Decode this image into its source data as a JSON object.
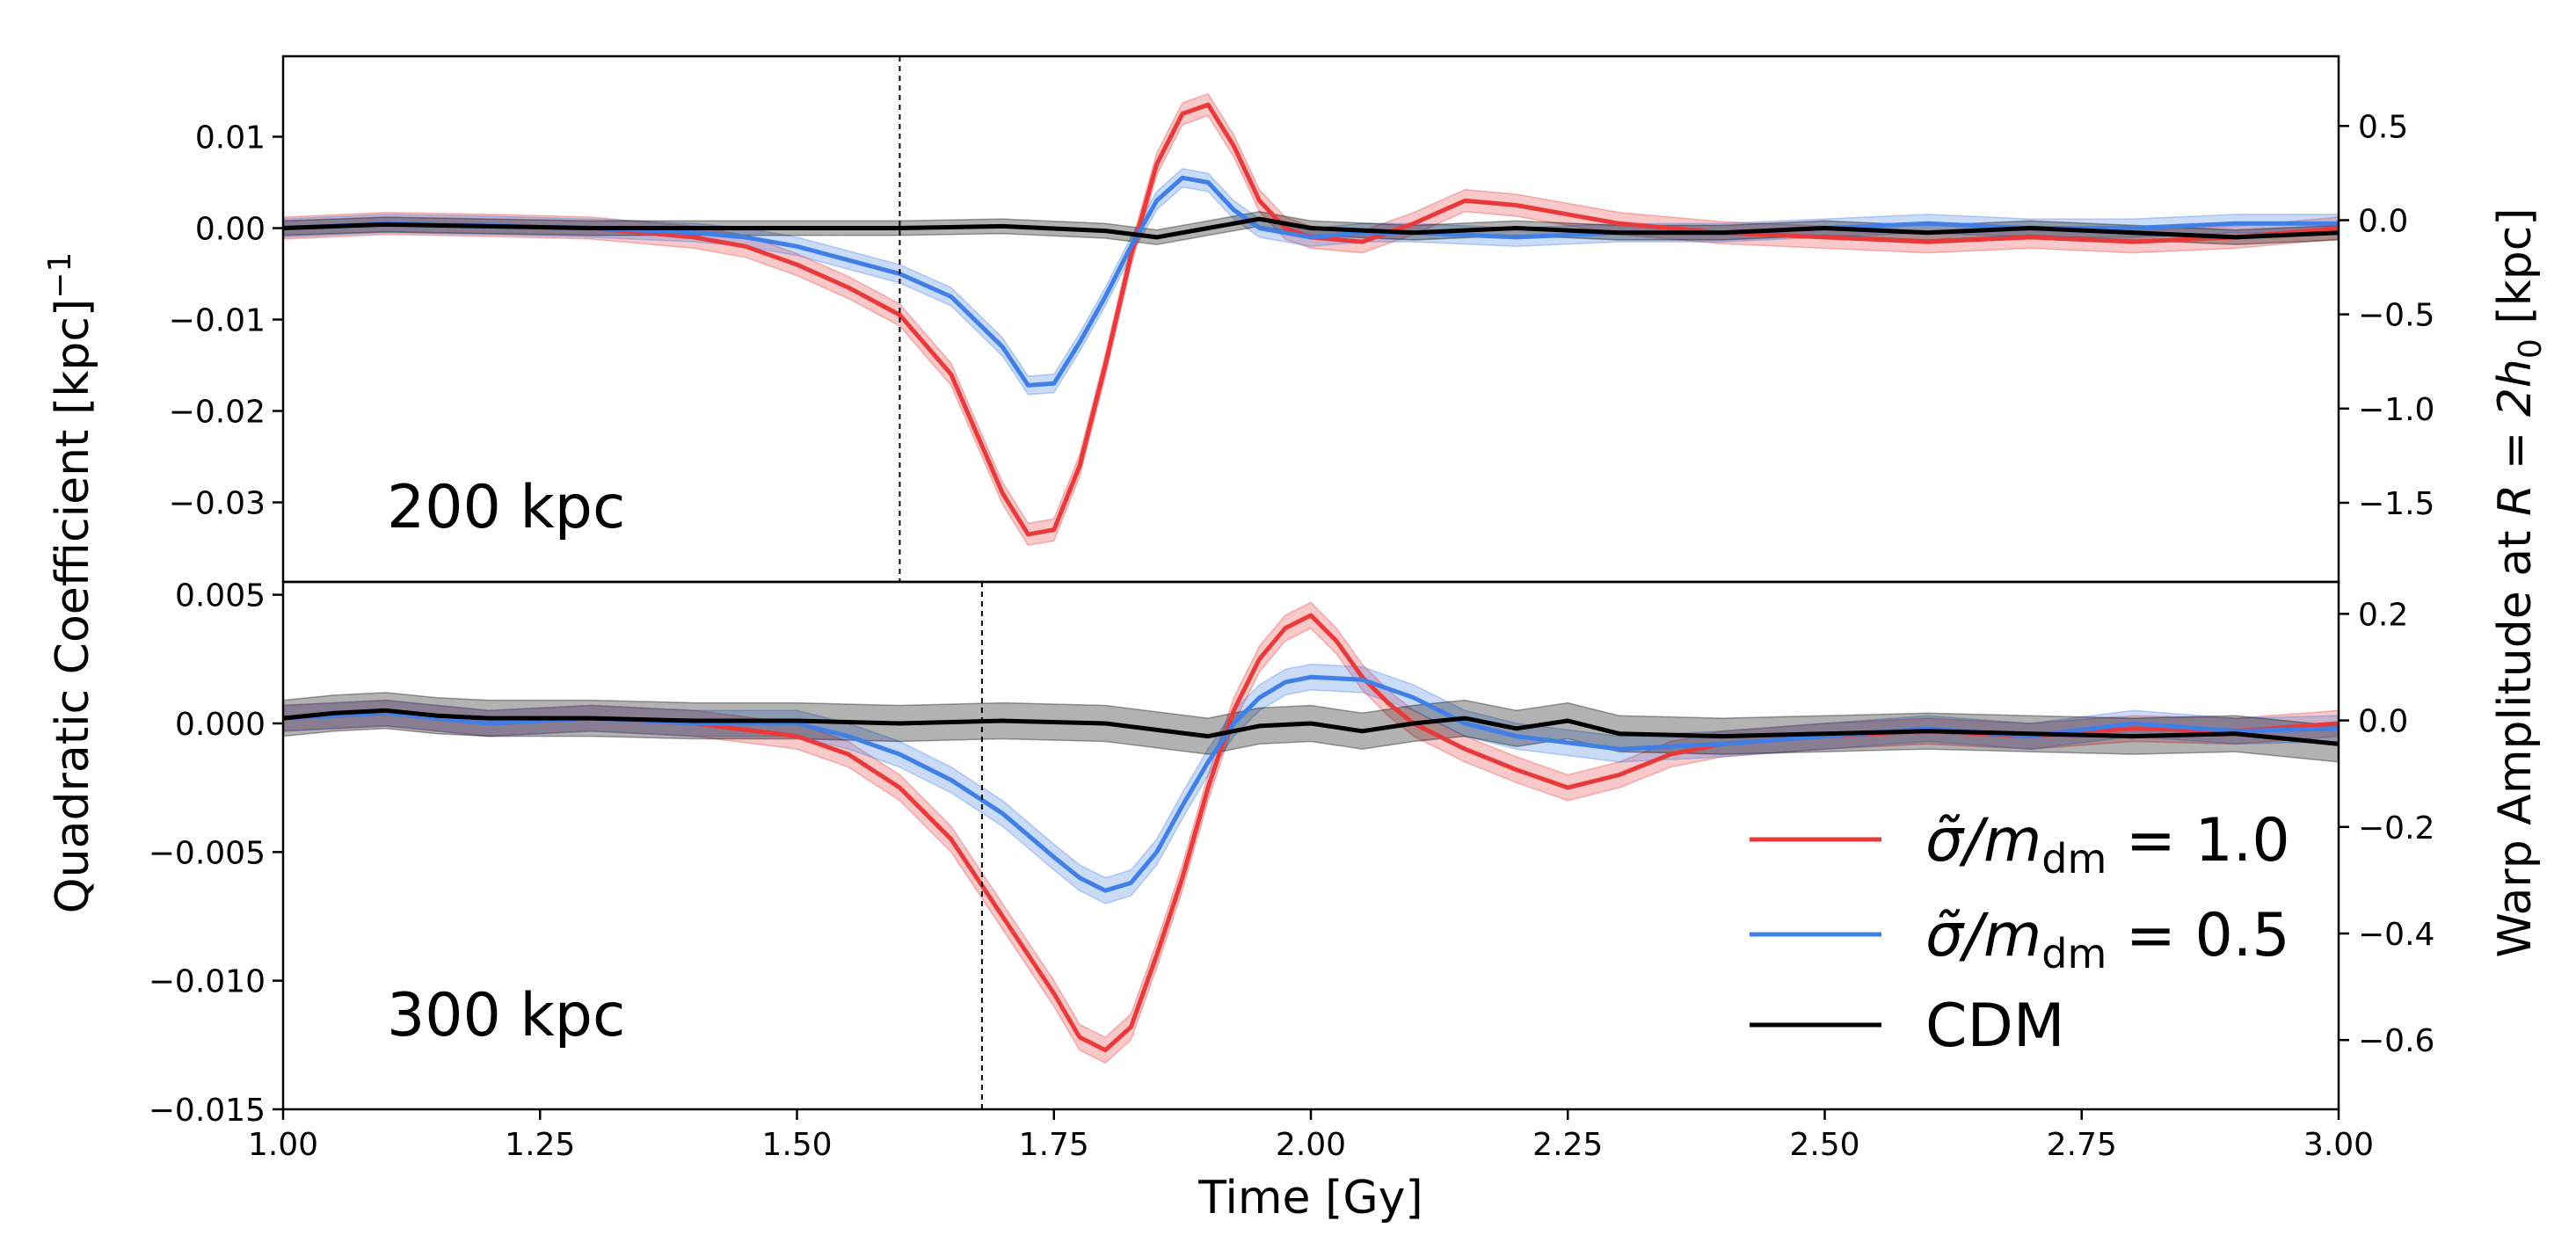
{
  "figure": {
    "xlabel": "Time [Gy]",
    "ylabel_left": "Quadratic Coefficient [kpc]",
    "ylabel_left_sup": "−1",
    "ylabel_right_prefix": "Warp Amplitude at ",
    "ylabel_right_math": "R = 2h",
    "ylabel_right_sub": "0",
    "ylabel_right_unit": " [kpc]",
    "xlim": [
      1.0,
      3.0
    ],
    "xticks": [
      "1.00",
      "1.25",
      "1.50",
      "1.75",
      "2.00",
      "2.25",
      "2.50",
      "2.75",
      "3.00"
    ]
  },
  "colors": {
    "sigma_1": "#e8393b",
    "sigma_05": "#3f7fe6",
    "cdm": "#000000"
  },
  "legend": {
    "items": [
      {
        "name": "σ̃/m_dm = 1.0",
        "prefix": "σ̃/m",
        "sub": "dm",
        "suffix": " = 1.0",
        "color_key": "sigma_1"
      },
      {
        "name": "σ̃/m_dm = 0.5",
        "prefix": "σ̃/m",
        "sub": "dm",
        "suffix": " = 0.5",
        "color_key": "sigma_05"
      },
      {
        "name": "CDM",
        "prefix": "CDM",
        "sub": "",
        "suffix": "",
        "color_key": "cdm"
      }
    ]
  },
  "chart_data": [
    {
      "type": "line",
      "panel_label": "200 kpc",
      "ylim": [
        -0.0387,
        0.0188
      ],
      "yticks_left": [
        "0.01",
        "0.00",
        "−0.01",
        "−0.02",
        "−0.03"
      ],
      "ytick_values_left": [
        0.01,
        0.0,
        -0.01,
        -0.02,
        -0.03
      ],
      "ylim_right": [
        -1.92,
        0.87
      ],
      "yticks_right": [
        "0.5",
        "0.0",
        "−0.5",
        "−1.0",
        "−1.5"
      ],
      "ytick_values_right": [
        0.5,
        0.0,
        -0.5,
        -1.0,
        -1.5
      ],
      "vline_x": 1.6,
      "series": [
        {
          "name": "σ̃/m_dm = 1.0",
          "color_key": "sigma_1",
          "x": [
            1.0,
            1.1,
            1.2,
            1.3,
            1.4,
            1.45,
            1.5,
            1.55,
            1.6,
            1.65,
            1.7,
            1.725,
            1.75,
            1.775,
            1.8,
            1.825,
            1.85,
            1.875,
            1.9,
            1.925,
            1.95,
            1.975,
            2.0,
            2.05,
            2.1,
            2.15,
            2.2,
            2.25,
            2.3,
            2.4,
            2.5,
            2.6,
            2.7,
            2.8,
            2.9,
            3.0
          ],
          "y": [
            0.0,
            0.0005,
            0.0003,
            0.0,
            -0.001,
            -0.002,
            -0.004,
            -0.0065,
            -0.0095,
            -0.016,
            -0.029,
            -0.0335,
            -0.033,
            -0.026,
            -0.015,
            -0.003,
            0.007,
            0.0125,
            0.0135,
            0.009,
            0.003,
            0.0,
            -0.001,
            -0.0015,
            0.0005,
            0.003,
            0.0025,
            0.0015,
            0.0005,
            -0.0005,
            -0.001,
            -0.0015,
            -0.001,
            -0.0015,
            -0.001,
            0.0
          ],
          "band": 0.0012
        },
        {
          "name": "σ̃/m_dm = 0.5",
          "color_key": "sigma_05",
          "x": [
            1.0,
            1.1,
            1.2,
            1.3,
            1.4,
            1.45,
            1.5,
            1.55,
            1.6,
            1.65,
            1.7,
            1.725,
            1.75,
            1.775,
            1.8,
            1.825,
            1.85,
            1.875,
            1.9,
            1.925,
            1.95,
            2.0,
            2.05,
            2.1,
            2.2,
            2.3,
            2.4,
            2.5,
            2.6,
            2.7,
            2.8,
            2.9,
            3.0
          ],
          "y": [
            0.0,
            0.0005,
            0.0003,
            0.0,
            -0.0005,
            -0.001,
            -0.002,
            -0.0035,
            -0.005,
            -0.0075,
            -0.013,
            -0.0172,
            -0.017,
            -0.0125,
            -0.0075,
            -0.002,
            0.003,
            0.0055,
            0.005,
            0.002,
            0.0,
            -0.001,
            -0.0005,
            -0.0005,
            -0.001,
            -0.0005,
            -0.0005,
            0.0,
            0.0005,
            0.0,
            0.0,
            0.0005,
            0.0005
          ],
          "band": 0.001
        },
        {
          "name": "CDM",
          "color_key": "cdm",
          "x": [
            1.0,
            1.1,
            1.2,
            1.3,
            1.4,
            1.5,
            1.6,
            1.7,
            1.8,
            1.85,
            1.9,
            1.95,
            2.0,
            2.1,
            2.2,
            2.3,
            2.4,
            2.5,
            2.6,
            2.7,
            2.8,
            2.9,
            3.0
          ],
          "y": [
            0.0,
            0.0004,
            0.0002,
            0.0,
            0.0,
            0.0,
            0.0,
            0.0002,
            -0.0003,
            -0.001,
            0.0,
            0.001,
            0.0,
            -0.0005,
            0.0,
            -0.0005,
            -0.0005,
            0.0,
            -0.0005,
            0.0,
            -0.0005,
            -0.001,
            -0.0005
          ],
          "band": 0.0008
        }
      ]
    },
    {
      "type": "line",
      "panel_label": "300 kpc",
      "ylim": [
        -0.015,
        0.0055
      ],
      "yticks_left": [
        "0.005",
        "0.000",
        "−0.005",
        "−0.010",
        "−0.015"
      ],
      "ytick_values_left": [
        0.005,
        0.0,
        -0.005,
        -0.01,
        -0.015
      ],
      "ylim_right": [
        -0.73,
        0.26
      ],
      "yticks_right": [
        "0.2",
        "0.0",
        "−0.2",
        "−0.4",
        "−0.6"
      ],
      "ytick_values_right": [
        0.2,
        0.0,
        -0.2,
        -0.4,
        -0.6
      ],
      "vline_x": 1.68,
      "series": [
        {
          "name": "σ̃/m_dm = 1.0",
          "color_key": "sigma_1",
          "x": [
            1.0,
            1.1,
            1.2,
            1.3,
            1.4,
            1.5,
            1.55,
            1.6,
            1.65,
            1.7,
            1.75,
            1.775,
            1.8,
            1.825,
            1.85,
            1.875,
            1.9,
            1.925,
            1.95,
            1.975,
            2.0,
            2.025,
            2.05,
            2.075,
            2.1,
            2.15,
            2.2,
            2.25,
            2.3,
            2.35,
            2.4,
            2.5,
            2.6,
            2.7,
            2.8,
            2.9,
            3.0
          ],
          "y": [
            0.0002,
            0.0004,
            0.0,
            0.0002,
            0.0,
            -0.0005,
            -0.0012,
            -0.0025,
            -0.0045,
            -0.0075,
            -0.0105,
            -0.0122,
            -0.0127,
            -0.0118,
            -0.009,
            -0.006,
            -0.0025,
            0.0005,
            0.0025,
            0.0037,
            0.0042,
            0.0032,
            0.0018,
            0.0008,
            0.0,
            -0.001,
            -0.0018,
            -0.0025,
            -0.002,
            -0.0012,
            -0.0008,
            -0.0005,
            -0.0003,
            -0.0005,
            -0.0002,
            -0.0003,
            0.0
          ],
          "band": 0.0005
        },
        {
          "name": "σ̃/m_dm = 0.5",
          "color_key": "sigma_05",
          "x": [
            1.0,
            1.1,
            1.2,
            1.3,
            1.4,
            1.5,
            1.55,
            1.6,
            1.65,
            1.7,
            1.75,
            1.775,
            1.8,
            1.825,
            1.85,
            1.875,
            1.9,
            1.925,
            1.95,
            1.975,
            2.0,
            2.05,
            2.1,
            2.15,
            2.2,
            2.3,
            2.4,
            2.5,
            2.6,
            2.7,
            2.8,
            2.9,
            3.0
          ],
          "y": [
            0.0002,
            0.0004,
            0.0,
            0.0002,
            0.0,
            0.0,
            -0.0005,
            -0.0012,
            -0.0022,
            -0.0035,
            -0.0052,
            -0.006,
            -0.0065,
            -0.0062,
            -0.005,
            -0.0032,
            -0.0015,
            0.0,
            0.001,
            0.0016,
            0.0018,
            0.0017,
            0.001,
            0.0,
            -0.0005,
            -0.001,
            -0.0008,
            -0.0005,
            -0.0002,
            -0.0005,
            0.0,
            -0.0003,
            -0.0002
          ],
          "band": 0.0005
        },
        {
          "name": "CDM",
          "color_key": "cdm",
          "x": [
            1.0,
            1.05,
            1.1,
            1.15,
            1.2,
            1.3,
            1.4,
            1.5,
            1.6,
            1.7,
            1.8,
            1.9,
            1.95,
            2.0,
            2.05,
            2.1,
            2.15,
            2.2,
            2.25,
            2.3,
            2.4,
            2.5,
            2.6,
            2.7,
            2.8,
            2.9,
            3.0
          ],
          "y": [
            0.0002,
            0.0004,
            0.0005,
            0.0003,
            0.0002,
            0.0002,
            0.0001,
            0.0001,
            0.0,
            0.0001,
            0.0,
            -0.0005,
            -0.0001,
            0.0,
            -0.0003,
            0.0,
            0.0002,
            -0.0002,
            0.0001,
            -0.0004,
            -0.0005,
            -0.0004,
            -0.0003,
            -0.0004,
            -0.0005,
            -0.0004,
            -0.0008
          ],
          "band": 0.0007
        }
      ]
    }
  ]
}
